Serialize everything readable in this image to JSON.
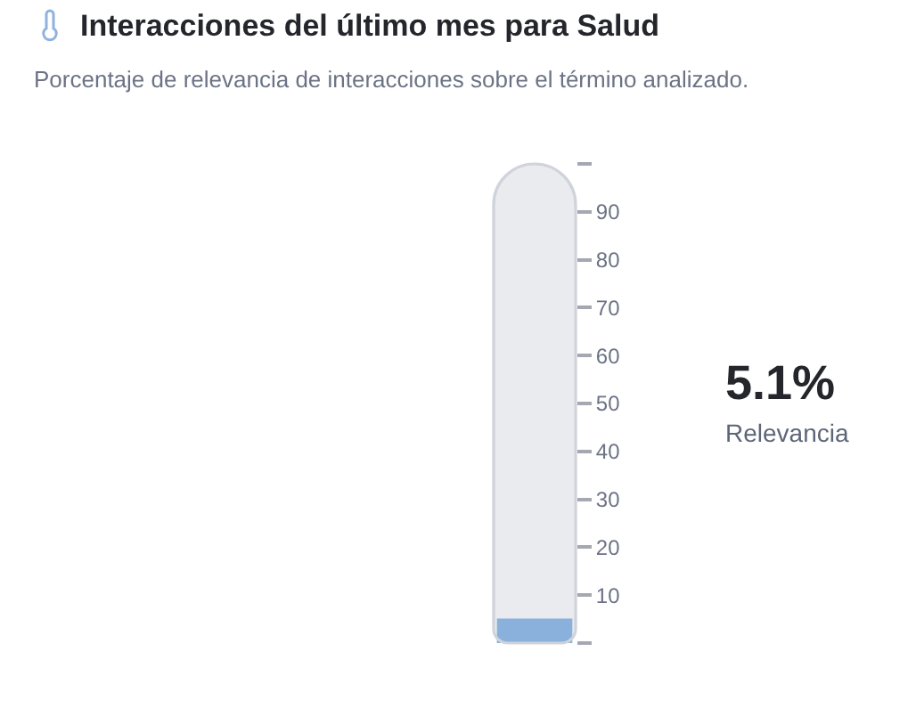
{
  "chart_data": {
    "type": "bar",
    "title": "Interacciones del último mes para Salud",
    "subtitle": "Porcentaje de relevancia de interacciones sobre el término analizado.",
    "categories": [
      null
    ],
    "series": [
      {
        "color": "#8ab0dc",
        "values": [
          5.1
        ]
      }
    ],
    "ylim": [
      0,
      100
    ],
    "yticks": [
      {
        "value": 0,
        "label": null
      },
      10,
      20,
      30,
      40,
      50,
      60,
      70,
      80,
      90,
      {
        "value": 100,
        "label": null
      }
    ],
    "annotations": [
      "5.1%",
      "Relevancia"
    ]
  }
}
